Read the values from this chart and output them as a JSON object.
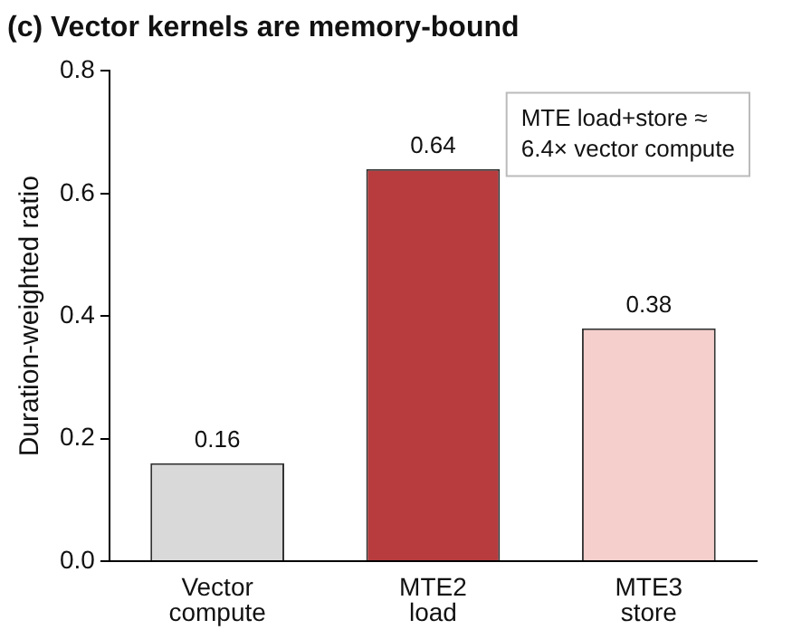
{
  "chart_data": {
    "type": "bar",
    "title": "(c) Vector kernels are memory-bound",
    "ylabel": "Duration-weighted ratio",
    "categories": [
      "Vector compute",
      "MTE2 load",
      "MTE3 store"
    ],
    "values": [
      0.16,
      0.64,
      0.38
    ],
    "colors": [
      "#d9d9d9",
      "#b83c3e",
      "#f5cfcc"
    ],
    "ylim": [
      0,
      0.8
    ],
    "yticks": [
      {
        "value": 0,
        "label": "0.0"
      },
      {
        "value": 0.2,
        "label": "0.2"
      },
      {
        "value": 0.4,
        "label": "0.4"
      },
      {
        "value": 0.6,
        "label": "0.6"
      },
      {
        "value": 0.8,
        "label": "0.8"
      }
    ],
    "data_labels": true,
    "grid": false,
    "legend": false,
    "annotations": [
      "MTE load+store ≈ 6.4× vector compute"
    ]
  }
}
